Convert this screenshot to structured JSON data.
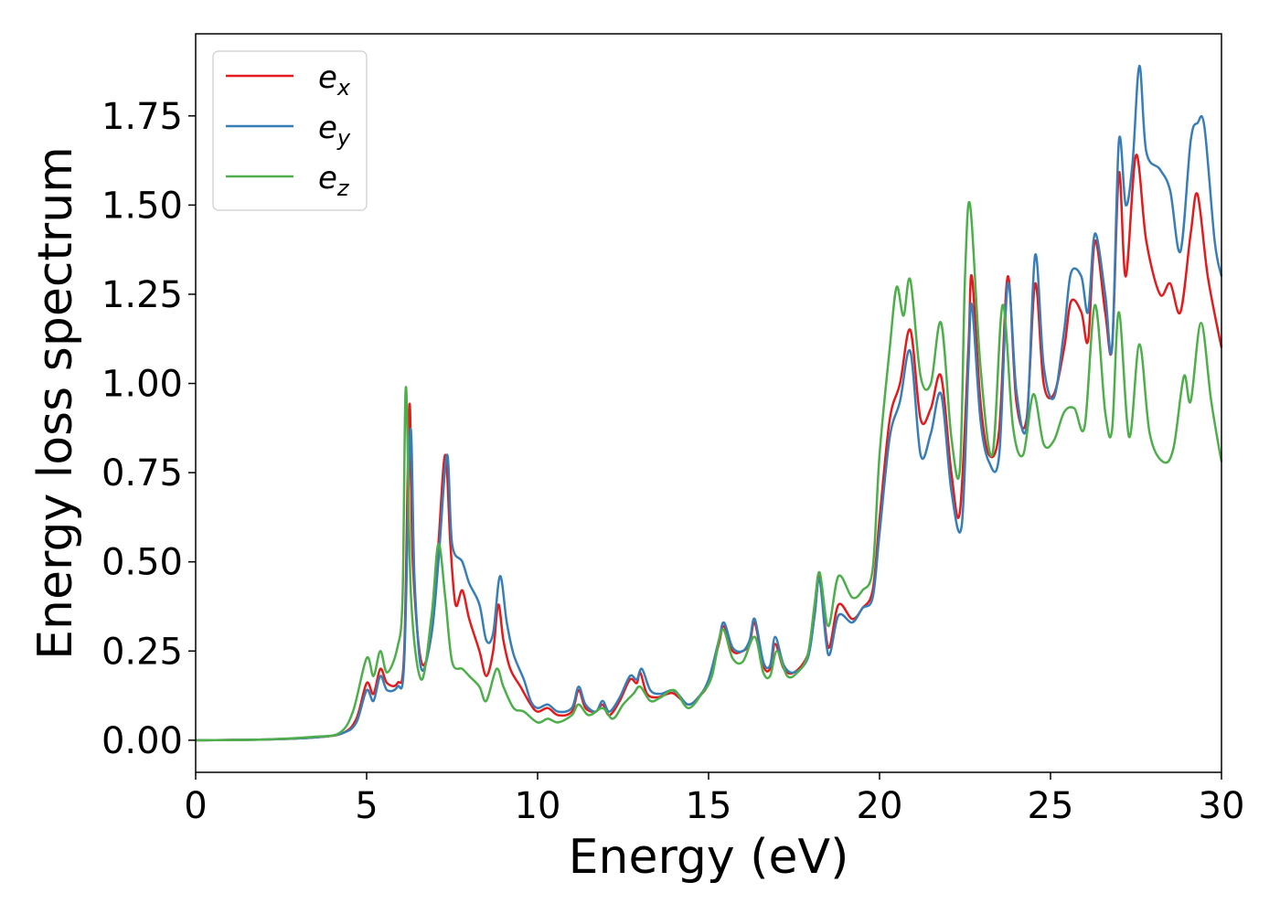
{
  "chart_data": {
    "type": "line",
    "xlabel": "Energy (eV)",
    "ylabel": "Energy loss spectrum",
    "xlim": [
      0,
      30
    ],
    "ylim": [
      -0.09,
      1.98
    ],
    "x_ticks": [
      0,
      5,
      10,
      15,
      20,
      25,
      30
    ],
    "x_tick_labels": [
      "0",
      "5",
      "10",
      "15",
      "20",
      "25",
      "30"
    ],
    "y_ticks": [
      0.0,
      0.25,
      0.5,
      0.75,
      1.0,
      1.25,
      1.5,
      1.75
    ],
    "y_tick_labels": [
      "0.00",
      "0.25",
      "0.50",
      "0.75",
      "1.00",
      "1.25",
      "1.50",
      "1.75"
    ],
    "grid": false,
    "legend_position": "top-left",
    "series": [
      {
        "name": "e_x",
        "label_base": "e",
        "label_sub": "x",
        "color": "#e41a1c",
        "points": [
          [
            0,
            0
          ],
          [
            2,
            0.002
          ],
          [
            3.5,
            0.008
          ],
          [
            4.3,
            0.02
          ],
          [
            4.7,
            0.06
          ],
          [
            5.0,
            0.16
          ],
          [
            5.2,
            0.13
          ],
          [
            5.4,
            0.2
          ],
          [
            5.6,
            0.16
          ],
          [
            5.9,
            0.16
          ],
          [
            6.1,
            0.25
          ],
          [
            6.25,
            0.94
          ],
          [
            6.35,
            0.5
          ],
          [
            6.6,
            0.22
          ],
          [
            6.9,
            0.3
          ],
          [
            7.1,
            0.55
          ],
          [
            7.3,
            0.8
          ],
          [
            7.45,
            0.55
          ],
          [
            7.6,
            0.38
          ],
          [
            7.8,
            0.42
          ],
          [
            8.0,
            0.34
          ],
          [
            8.3,
            0.25
          ],
          [
            8.5,
            0.18
          ],
          [
            8.7,
            0.25
          ],
          [
            8.85,
            0.38
          ],
          [
            9.0,
            0.28
          ],
          [
            9.2,
            0.2
          ],
          [
            9.5,
            0.15
          ],
          [
            9.8,
            0.1
          ],
          [
            10.0,
            0.08
          ],
          [
            10.3,
            0.09
          ],
          [
            10.6,
            0.07
          ],
          [
            11.0,
            0.08
          ],
          [
            11.2,
            0.14
          ],
          [
            11.4,
            0.09
          ],
          [
            11.7,
            0.08
          ],
          [
            11.9,
            0.1
          ],
          [
            12.1,
            0.07
          ],
          [
            12.4,
            0.11
          ],
          [
            12.7,
            0.17
          ],
          [
            12.9,
            0.16
          ],
          [
            13.0,
            0.19
          ],
          [
            13.2,
            0.13
          ],
          [
            13.5,
            0.12
          ],
          [
            13.8,
            0.13
          ],
          [
            14.0,
            0.13
          ],
          [
            14.4,
            0.1
          ],
          [
            14.7,
            0.12
          ],
          [
            15.0,
            0.16
          ],
          [
            15.3,
            0.27
          ],
          [
            15.45,
            0.32
          ],
          [
            15.7,
            0.25
          ],
          [
            16.0,
            0.25
          ],
          [
            16.2,
            0.27
          ],
          [
            16.35,
            0.33
          ],
          [
            16.6,
            0.21
          ],
          [
            16.8,
            0.2
          ],
          [
            16.95,
            0.27
          ],
          [
            17.2,
            0.2
          ],
          [
            17.5,
            0.19
          ],
          [
            17.9,
            0.24
          ],
          [
            18.1,
            0.35
          ],
          [
            18.25,
            0.46
          ],
          [
            18.5,
            0.26
          ],
          [
            18.8,
            0.38
          ],
          [
            19.2,
            0.34
          ],
          [
            19.5,
            0.37
          ],
          [
            19.8,
            0.42
          ],
          [
            20.0,
            0.62
          ],
          [
            20.3,
            0.9
          ],
          [
            20.6,
            1.0
          ],
          [
            20.9,
            1.15
          ],
          [
            21.2,
            0.9
          ],
          [
            21.5,
            0.93
          ],
          [
            21.8,
            1.02
          ],
          [
            22.1,
            0.75
          ],
          [
            22.35,
            0.64
          ],
          [
            22.6,
            1.1
          ],
          [
            22.7,
            1.3
          ],
          [
            22.95,
            0.95
          ],
          [
            23.2,
            0.8
          ],
          [
            23.5,
            0.87
          ],
          [
            23.75,
            1.3
          ],
          [
            24.0,
            0.95
          ],
          [
            24.3,
            0.9
          ],
          [
            24.55,
            1.28
          ],
          [
            24.8,
            1.0
          ],
          [
            25.1,
            0.97
          ],
          [
            25.4,
            1.1
          ],
          [
            25.6,
            1.23
          ],
          [
            25.9,
            1.2
          ],
          [
            26.1,
            1.12
          ],
          [
            26.3,
            1.4
          ],
          [
            26.6,
            1.2
          ],
          [
            26.8,
            1.1
          ],
          [
            27.0,
            1.59
          ],
          [
            27.2,
            1.3
          ],
          [
            27.5,
            1.64
          ],
          [
            27.8,
            1.4
          ],
          [
            28.2,
            1.25
          ],
          [
            28.5,
            1.28
          ],
          [
            28.8,
            1.2
          ],
          [
            29.1,
            1.42
          ],
          [
            29.3,
            1.53
          ],
          [
            29.6,
            1.3
          ],
          [
            30.0,
            1.1
          ]
        ]
      },
      {
        "name": "e_y",
        "label_base": "e",
        "label_sub": "y",
        "color": "#377eb8",
        "points": [
          [
            0,
            0
          ],
          [
            2,
            0.002
          ],
          [
            3.5,
            0.008
          ],
          [
            4.3,
            0.02
          ],
          [
            4.7,
            0.05
          ],
          [
            5.0,
            0.14
          ],
          [
            5.2,
            0.11
          ],
          [
            5.4,
            0.18
          ],
          [
            5.6,
            0.14
          ],
          [
            5.9,
            0.15
          ],
          [
            6.1,
            0.22
          ],
          [
            6.28,
            0.87
          ],
          [
            6.4,
            0.45
          ],
          [
            6.6,
            0.2
          ],
          [
            6.9,
            0.3
          ],
          [
            7.1,
            0.5
          ],
          [
            7.35,
            0.8
          ],
          [
            7.5,
            0.55
          ],
          [
            7.8,
            0.5
          ],
          [
            8.0,
            0.44
          ],
          [
            8.3,
            0.38
          ],
          [
            8.5,
            0.28
          ],
          [
            8.7,
            0.3
          ],
          [
            8.9,
            0.46
          ],
          [
            9.1,
            0.33
          ],
          [
            9.3,
            0.24
          ],
          [
            9.6,
            0.17
          ],
          [
            9.8,
            0.11
          ],
          [
            10.0,
            0.09
          ],
          [
            10.3,
            0.1
          ],
          [
            10.6,
            0.08
          ],
          [
            11.0,
            0.09
          ],
          [
            11.2,
            0.15
          ],
          [
            11.4,
            0.1
          ],
          [
            11.7,
            0.08
          ],
          [
            11.9,
            0.11
          ],
          [
            12.1,
            0.08
          ],
          [
            12.4,
            0.12
          ],
          [
            12.7,
            0.18
          ],
          [
            12.9,
            0.17
          ],
          [
            13.05,
            0.2
          ],
          [
            13.3,
            0.14
          ],
          [
            13.6,
            0.13
          ],
          [
            13.9,
            0.14
          ],
          [
            14.1,
            0.13
          ],
          [
            14.4,
            0.1
          ],
          [
            14.7,
            0.12
          ],
          [
            15.0,
            0.17
          ],
          [
            15.3,
            0.28
          ],
          [
            15.45,
            0.33
          ],
          [
            15.7,
            0.26
          ],
          [
            16.0,
            0.25
          ],
          [
            16.2,
            0.28
          ],
          [
            16.35,
            0.34
          ],
          [
            16.6,
            0.22
          ],
          [
            16.8,
            0.21
          ],
          [
            16.95,
            0.29
          ],
          [
            17.2,
            0.21
          ],
          [
            17.5,
            0.19
          ],
          [
            17.9,
            0.23
          ],
          [
            18.1,
            0.35
          ],
          [
            18.25,
            0.45
          ],
          [
            18.5,
            0.24
          ],
          [
            18.8,
            0.35
          ],
          [
            19.2,
            0.33
          ],
          [
            19.5,
            0.37
          ],
          [
            19.8,
            0.4
          ],
          [
            20.0,
            0.58
          ],
          [
            20.3,
            0.85
          ],
          [
            20.6,
            0.95
          ],
          [
            20.9,
            1.09
          ],
          [
            21.2,
            0.8
          ],
          [
            21.5,
            0.86
          ],
          [
            21.8,
            0.97
          ],
          [
            22.1,
            0.7
          ],
          [
            22.4,
            0.6
          ],
          [
            22.6,
            1.05
          ],
          [
            22.7,
            1.22
          ],
          [
            22.95,
            0.9
          ],
          [
            23.2,
            0.78
          ],
          [
            23.5,
            0.8
          ],
          [
            23.75,
            1.28
          ],
          [
            24.0,
            0.98
          ],
          [
            24.3,
            0.88
          ],
          [
            24.55,
            1.36
          ],
          [
            24.8,
            1.05
          ],
          [
            25.1,
            0.96
          ],
          [
            25.4,
            1.15
          ],
          [
            25.6,
            1.31
          ],
          [
            25.9,
            1.3
          ],
          [
            26.1,
            1.2
          ],
          [
            26.3,
            1.42
          ],
          [
            26.6,
            1.25
          ],
          [
            26.8,
            1.1
          ],
          [
            27.0,
            1.68
          ],
          [
            27.2,
            1.5
          ],
          [
            27.4,
            1.62
          ],
          [
            27.6,
            1.89
          ],
          [
            27.8,
            1.65
          ],
          [
            28.2,
            1.6
          ],
          [
            28.5,
            1.54
          ],
          [
            28.8,
            1.37
          ],
          [
            29.1,
            1.68
          ],
          [
            29.3,
            1.73
          ],
          [
            29.5,
            1.72
          ],
          [
            29.8,
            1.4
          ],
          [
            30.0,
            1.3
          ]
        ]
      },
      {
        "name": "e_z",
        "label_base": "e",
        "label_sub": "z",
        "color": "#4daf4a",
        "points": [
          [
            0,
            0
          ],
          [
            2,
            0.002
          ],
          [
            3.5,
            0.01
          ],
          [
            4.2,
            0.02
          ],
          [
            4.6,
            0.08
          ],
          [
            5.0,
            0.23
          ],
          [
            5.2,
            0.18
          ],
          [
            5.4,
            0.25
          ],
          [
            5.6,
            0.19
          ],
          [
            5.9,
            0.26
          ],
          [
            6.05,
            0.4
          ],
          [
            6.15,
            0.99
          ],
          [
            6.3,
            0.4
          ],
          [
            6.6,
            0.17
          ],
          [
            6.9,
            0.35
          ],
          [
            7.1,
            0.55
          ],
          [
            7.3,
            0.4
          ],
          [
            7.5,
            0.22
          ],
          [
            7.8,
            0.2
          ],
          [
            8.0,
            0.18
          ],
          [
            8.3,
            0.15
          ],
          [
            8.5,
            0.11
          ],
          [
            8.8,
            0.2
          ],
          [
            9.0,
            0.15
          ],
          [
            9.3,
            0.09
          ],
          [
            9.6,
            0.08
          ],
          [
            10.0,
            0.05
          ],
          [
            10.3,
            0.06
          ],
          [
            10.6,
            0.05
          ],
          [
            11.0,
            0.07
          ],
          [
            11.2,
            0.1
          ],
          [
            11.5,
            0.07
          ],
          [
            11.9,
            0.09
          ],
          [
            12.2,
            0.06
          ],
          [
            12.5,
            0.1
          ],
          [
            12.8,
            0.13
          ],
          [
            13.0,
            0.15
          ],
          [
            13.3,
            0.11
          ],
          [
            13.6,
            0.12
          ],
          [
            14.0,
            0.14
          ],
          [
            14.4,
            0.09
          ],
          [
            14.8,
            0.13
          ],
          [
            15.1,
            0.18
          ],
          [
            15.4,
            0.31
          ],
          [
            15.7,
            0.23
          ],
          [
            16.0,
            0.22
          ],
          [
            16.35,
            0.29
          ],
          [
            16.6,
            0.19
          ],
          [
            16.8,
            0.18
          ],
          [
            17.0,
            0.25
          ],
          [
            17.3,
            0.18
          ],
          [
            17.6,
            0.19
          ],
          [
            17.9,
            0.24
          ],
          [
            18.1,
            0.38
          ],
          [
            18.25,
            0.47
          ],
          [
            18.5,
            0.32
          ],
          [
            18.8,
            0.46
          ],
          [
            19.2,
            0.4
          ],
          [
            19.5,
            0.42
          ],
          [
            19.8,
            0.48
          ],
          [
            20.0,
            0.8
          ],
          [
            20.3,
            1.1
          ],
          [
            20.5,
            1.27
          ],
          [
            20.7,
            1.19
          ],
          [
            20.9,
            1.29
          ],
          [
            21.2,
            1.02
          ],
          [
            21.5,
            1.0
          ],
          [
            21.8,
            1.17
          ],
          [
            22.1,
            0.85
          ],
          [
            22.35,
            0.76
          ],
          [
            22.5,
            1.3
          ],
          [
            22.65,
            1.5
          ],
          [
            22.95,
            1.05
          ],
          [
            23.3,
            0.8
          ],
          [
            23.6,
            1.22
          ],
          [
            23.9,
            0.88
          ],
          [
            24.2,
            0.8
          ],
          [
            24.5,
            0.97
          ],
          [
            24.8,
            0.83
          ],
          [
            25.1,
            0.84
          ],
          [
            25.4,
            0.92
          ],
          [
            25.7,
            0.93
          ],
          [
            26.0,
            0.88
          ],
          [
            26.3,
            1.22
          ],
          [
            26.6,
            0.92
          ],
          [
            26.8,
            0.87
          ],
          [
            27.0,
            1.2
          ],
          [
            27.3,
            0.85
          ],
          [
            27.6,
            1.11
          ],
          [
            27.9,
            0.86
          ],
          [
            28.3,
            0.78
          ],
          [
            28.6,
            0.82
          ],
          [
            28.9,
            1.02
          ],
          [
            29.1,
            0.95
          ],
          [
            29.4,
            1.17
          ],
          [
            29.7,
            0.95
          ],
          [
            30.0,
            0.78
          ]
        ]
      }
    ]
  }
}
